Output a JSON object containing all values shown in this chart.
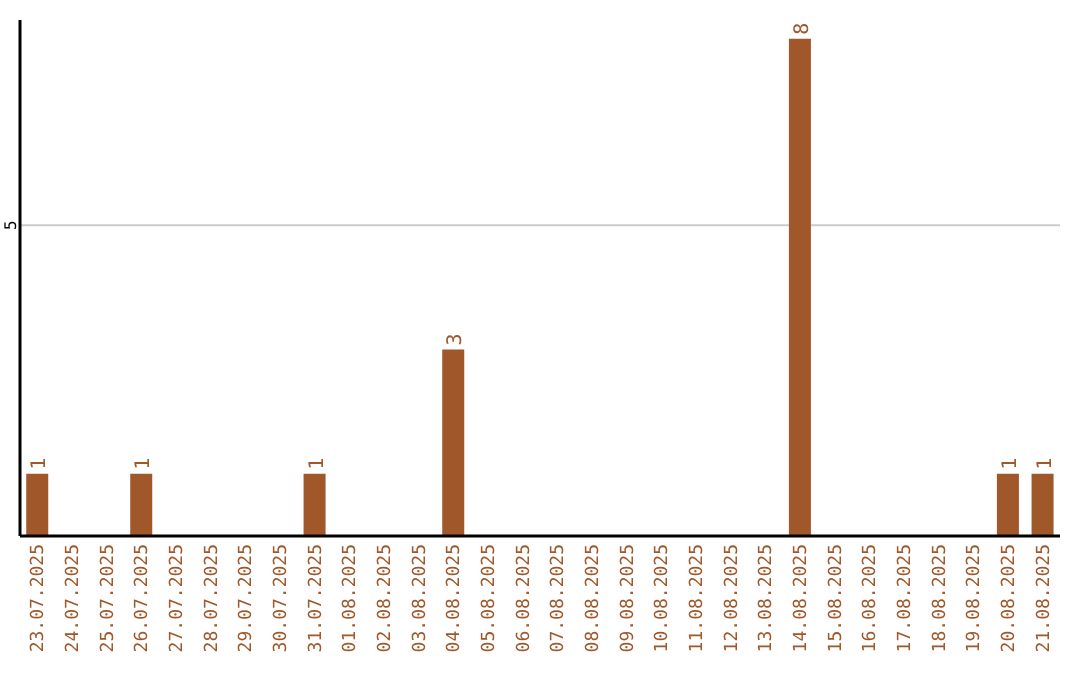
{
  "chart_data": {
    "type": "bar",
    "categories": [
      "23.07.2025",
      "24.07.2025",
      "25.07.2025",
      "26.07.2025",
      "27.07.2025",
      "28.07.2025",
      "29.07.2025",
      "30.07.2025",
      "31.07.2025",
      "01.08.2025",
      "02.08.2025",
      "03.08.2025",
      "04.08.2025",
      "05.08.2025",
      "06.08.2025",
      "07.08.2025",
      "08.08.2025",
      "09.08.2025",
      "10.08.2025",
      "11.08.2025",
      "12.08.2025",
      "13.08.2025",
      "14.08.2025",
      "15.08.2025",
      "16.08.2025",
      "17.08.2025",
      "18.08.2025",
      "19.08.2025",
      "20.08.2025",
      "21.08.2025"
    ],
    "values": [
      1,
      0,
      0,
      1,
      0,
      0,
      0,
      0,
      1,
      0,
      0,
      0,
      3,
      0,
      0,
      0,
      0,
      0,
      0,
      0,
      0,
      0,
      8,
      0,
      0,
      0,
      0,
      0,
      1,
      1
    ],
    "color": "#a0572a",
    "value_labels": [
      "1",
      null,
      null,
      "1",
      null,
      null,
      null,
      null,
      "1",
      null,
      null,
      null,
      "3",
      null,
      null,
      null,
      null,
      null,
      null,
      null,
      null,
      null,
      "8",
      null,
      null,
      null,
      null,
      null,
      "1",
      "1"
    ],
    "ylim": [
      0,
      8.3
    ],
    "yticks": [
      5
    ],
    "grid": "y"
  }
}
